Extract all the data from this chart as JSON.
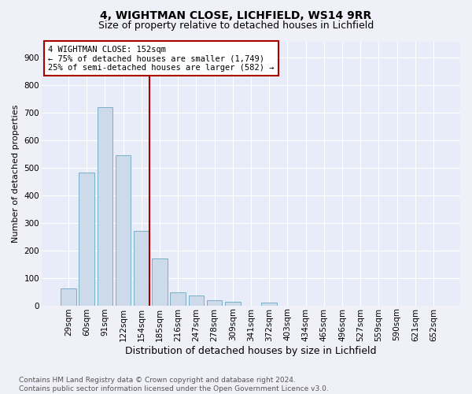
{
  "title1": "4, WIGHTMAN CLOSE, LICHFIELD, WS14 9RR",
  "title2": "Size of property relative to detached houses in Lichfield",
  "xlabel": "Distribution of detached houses by size in Lichfield",
  "ylabel": "Number of detached properties",
  "categories": [
    "29sqm",
    "60sqm",
    "91sqm",
    "122sqm",
    "154sqm",
    "185sqm",
    "216sqm",
    "247sqm",
    "278sqm",
    "309sqm",
    "341sqm",
    "372sqm",
    "403sqm",
    "434sqm",
    "465sqm",
    "496sqm",
    "527sqm",
    "559sqm",
    "590sqm",
    "621sqm",
    "652sqm"
  ],
  "values": [
    62,
    482,
    720,
    545,
    272,
    172,
    48,
    35,
    18,
    14,
    0,
    10,
    0,
    0,
    0,
    0,
    0,
    0,
    0,
    0,
    0
  ],
  "bar_color": "#ccdaea",
  "bar_edge_color": "#7aafc8",
  "vline_color": "#aa0000",
  "annotation_text": "4 WIGHTMAN CLOSE: 152sqm\n← 75% of detached houses are smaller (1,749)\n25% of semi-detached houses are larger (582) →",
  "ylim": [
    0,
    960
  ],
  "yticks": [
    0,
    100,
    200,
    300,
    400,
    500,
    600,
    700,
    800,
    900
  ],
  "bg_color": "#e8ecf8",
  "grid_color": "#d4d8e8",
  "fig_bg_color": "#f0f0f8",
  "footer": "Contains HM Land Registry data © Crown copyright and database right 2024.\nContains public sector information licensed under the Open Government Licence v3.0.",
  "title1_fontsize": 10,
  "title2_fontsize": 9,
  "xlabel_fontsize": 9,
  "ylabel_fontsize": 8,
  "tick_fontsize": 7.5,
  "ann_fontsize": 7.5,
  "footer_fontsize": 6.5
}
